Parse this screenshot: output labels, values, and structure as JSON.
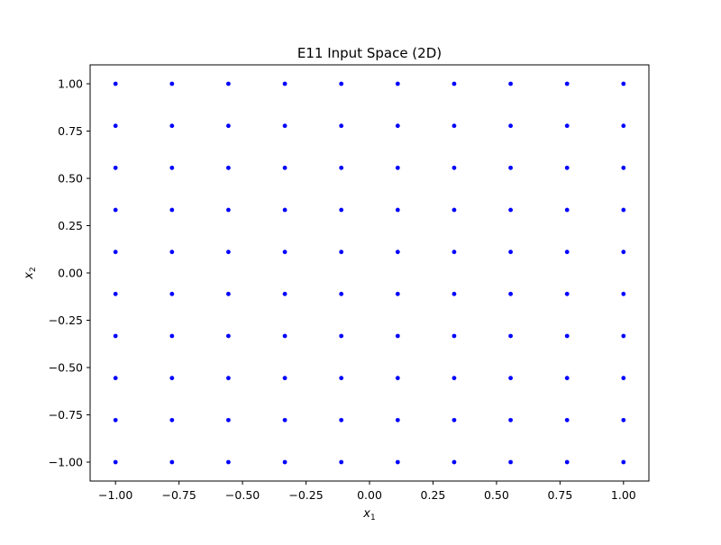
{
  "chart_data": {
    "type": "scatter",
    "title": "E11 Input Space (2D)",
    "xlabel": "x1",
    "ylabel": "x2",
    "xlim": [
      -1.1,
      1.1
    ],
    "ylim": [
      -1.1,
      1.1
    ],
    "grid": false,
    "marker_color": "#0000ff",
    "grid_values": [
      -1.0,
      -0.7778,
      -0.5556,
      -0.3333,
      -0.1111,
      0.1111,
      0.3333,
      0.5556,
      0.7778,
      1.0
    ],
    "x_ticks": [
      "−1.00",
      "−0.75",
      "−0.50",
      "−0.25",
      "0.00",
      "0.25",
      "0.50",
      "0.75",
      "1.00"
    ],
    "x_tick_values": [
      -1.0,
      -0.75,
      -0.5,
      -0.25,
      0.0,
      0.25,
      0.5,
      0.75,
      1.0
    ],
    "y_ticks": [
      "−1.00",
      "−0.75",
      "−0.50",
      "−0.25",
      "0.00",
      "0.25",
      "0.50",
      "0.75",
      "1.00"
    ],
    "y_tick_values": [
      -1.0,
      -0.75,
      -0.5,
      -0.25,
      0.0,
      0.25,
      0.5,
      0.75,
      1.0
    ]
  }
}
